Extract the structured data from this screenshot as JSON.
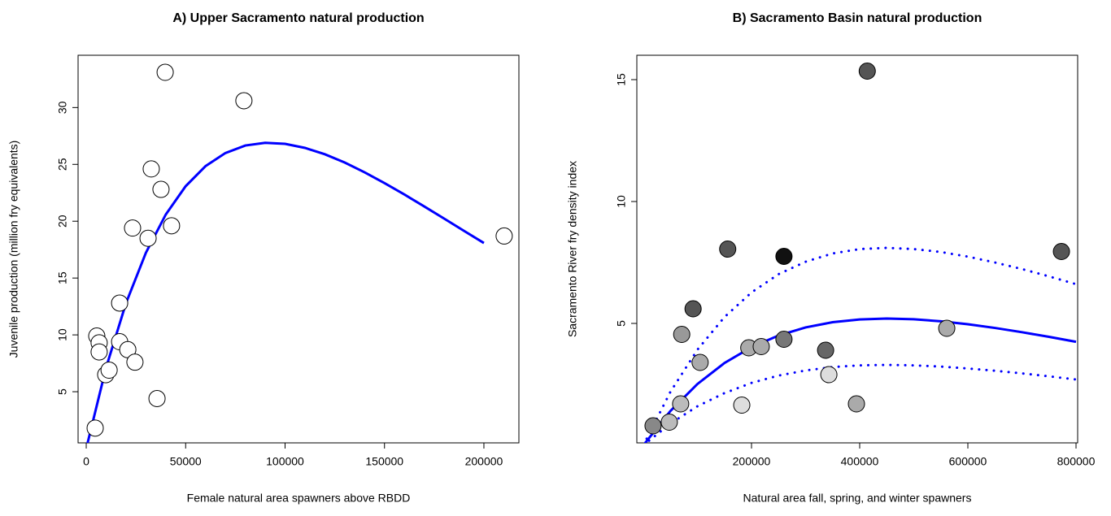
{
  "chart_data": [
    {
      "type": "scatter",
      "title": "A) Upper Sacramento natural production",
      "x_label": "Female natural area spawners above RBDD",
      "y_label": "Juvenile production (million fry equivalents)",
      "xlim": [
        -4100,
        217600
      ],
      "ylim": [
        0.5,
        34.6
      ],
      "xticks": [
        0,
        50000,
        100000,
        150000,
        200000
      ],
      "yticks": [
        5,
        10,
        15,
        20,
        25,
        30
      ],
      "points": {
        "x": [
          4500,
          5300,
          6500,
          6500,
          9800,
          11500,
          16800,
          16800,
          20900,
          23300,
          24500,
          31100,
          32700,
          35600,
          37600,
          39700,
          42900,
          79300,
          210200
        ],
        "values": [
          1.8,
          9.9,
          9.3,
          8.5,
          6.5,
          6.9,
          12.8,
          9.4,
          8.7,
          19.4,
          7.6,
          18.5,
          24.6,
          4.4,
          22.8,
          33.1,
          19.6,
          30.6,
          18.7
        ],
        "colors": [
          "#ffffff",
          "#ffffff",
          "#ffffff",
          "#ffffff",
          "#ffffff",
          "#ffffff",
          "#ffffff",
          "#ffffff",
          "#ffffff",
          "#ffffff",
          "#ffffff",
          "#ffffff",
          "#ffffff",
          "#ffffff",
          "#ffffff",
          "#ffffff",
          "#ffffff",
          "#ffffff",
          "#ffffff"
        ]
      },
      "lines": [
        {
          "color": "#0000ff",
          "dotted": false,
          "x": [
            0,
            10000,
            20000,
            30000,
            40000,
            50000,
            60000,
            70000,
            80000,
            90000,
            100000,
            110000,
            120000,
            130000,
            140000,
            150000,
            160000,
            170000,
            180000,
            190000,
            200000
          ],
          "values": [
            0,
            7.13,
            12.79,
            17.22,
            20.59,
            23.08,
            24.85,
            26.0,
            26.66,
            26.9,
            26.81,
            26.45,
            25.89,
            25.16,
            24.3,
            23.35,
            22.35,
            21.3,
            20.23,
            19.15,
            18.08
          ]
        }
      ]
    },
    {
      "type": "scatter",
      "title": "B) Sacramento Basin natural production",
      "x_label": "Natural area fall, spring, and winter spawners",
      "y_label": "Sacramento River fry density index",
      "xlim": [
        -12000,
        803000
      ],
      "ylim": [
        0.1,
        16
      ],
      "xticks": [
        200000,
        400000,
        600000,
        800000
      ],
      "yticks": [
        5,
        10,
        15
      ],
      "points": {
        "x": [
          18000,
          48000,
          69000,
          71000,
          92000,
          105000,
          156000,
          182000,
          195000,
          218000,
          260000,
          260000,
          337000,
          343000,
          394000,
          414000,
          561000,
          773000
        ],
        "values": [
          0.8,
          0.95,
          1.7,
          4.55,
          5.6,
          3.4,
          8.05,
          1.65,
          4.0,
          4.05,
          7.75,
          4.35,
          3.9,
          2.9,
          1.7,
          15.35,
          4.8,
          7.95
        ],
        "colors": [
          "#888888",
          "#bbbbbb",
          "#bbbbbb",
          "#999999",
          "#555555",
          "#aaaaaa",
          "#555555",
          "#dddddd",
          "#aaaaaa",
          "#aaaaaa",
          "#111111",
          "#777777",
          "#666666",
          "#dddddd",
          "#aaaaaa",
          "#555555",
          "#aaaaaa",
          "#555555"
        ]
      },
      "lines": [
        {
          "color": "#0000ff",
          "dotted": false,
          "x": [
            0,
            50000,
            100000,
            150000,
            200000,
            250000,
            300000,
            350000,
            400000,
            450000,
            500000,
            550000,
            600000,
            650000,
            700000,
            750000,
            800000
          ],
          "values": [
            0,
            1.405,
            2.514,
            3.375,
            4.027,
            4.504,
            4.836,
            5.049,
            5.164,
            5.198,
            5.169,
            5.088,
            4.966,
            4.815,
            4.64,
            4.449,
            4.245
          ]
        },
        {
          "color": "#0000ff",
          "dotted": true,
          "x": [
            0,
            50000,
            100000,
            150000,
            200000,
            250000,
            300000,
            350000,
            400000,
            450000,
            500000,
            550000,
            600000,
            650000,
            700000,
            750000,
            800000
          ],
          "values": [
            0,
            2.19,
            3.92,
            5.26,
            6.27,
            7.02,
            7.53,
            7.87,
            8.05,
            8.1,
            8.05,
            7.93,
            7.74,
            7.5,
            7.23,
            6.93,
            6.61
          ]
        },
        {
          "color": "#0000ff",
          "dotted": true,
          "x": [
            0,
            50000,
            100000,
            150000,
            200000,
            250000,
            300000,
            350000,
            400000,
            450000,
            500000,
            550000,
            600000,
            650000,
            700000,
            750000,
            800000
          ],
          "values": [
            0,
            0.89,
            1.6,
            2.14,
            2.56,
            2.86,
            3.07,
            3.21,
            3.28,
            3.3,
            3.28,
            3.23,
            3.15,
            3.06,
            2.95,
            2.83,
            2.7
          ]
        }
      ]
    }
  ]
}
